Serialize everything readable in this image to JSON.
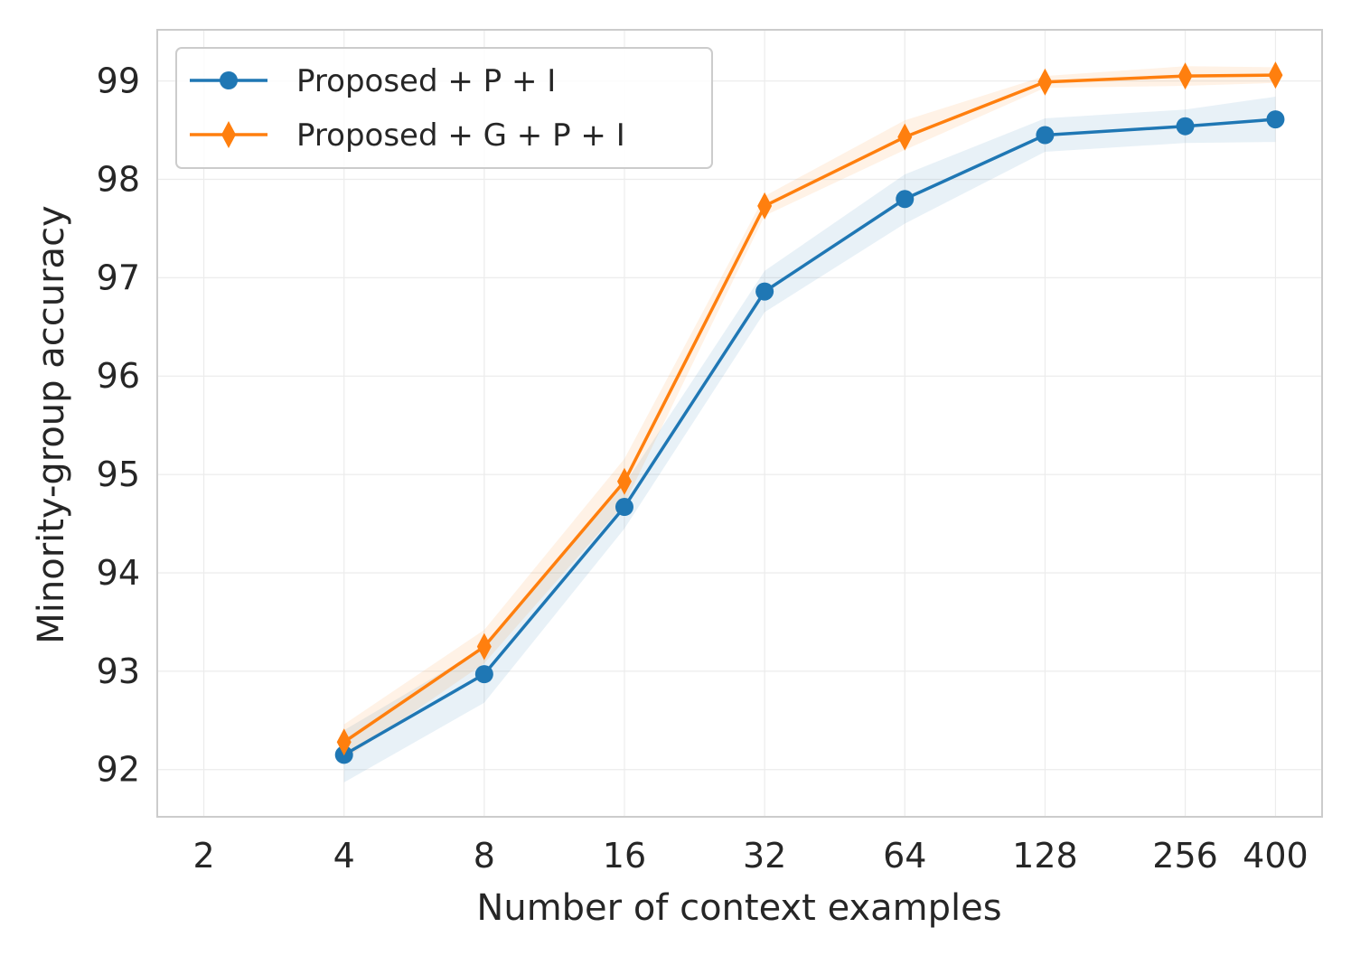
{
  "chart_data": {
    "type": "line",
    "xlabel": "Number of context examples",
    "ylabel": "Minority-group accuracy",
    "xscale": "log2",
    "xlim": [
      2,
      400
    ],
    "ylim": [
      91.52,
      99.52
    ],
    "xticks": [
      2,
      4,
      8,
      16,
      32,
      64,
      128,
      256,
      400
    ],
    "xtick_labels": [
      "2",
      "4",
      "8",
      "16",
      "32",
      "64",
      "128",
      "256",
      "400"
    ],
    "yticks": [
      92,
      93,
      94,
      95,
      96,
      97,
      98,
      99
    ],
    "ytick_labels": [
      "92",
      "93",
      "94",
      "95",
      "96",
      "97",
      "98",
      "99"
    ],
    "grid": true,
    "legend_position": "top-left",
    "x": [
      4,
      8,
      16,
      32,
      64,
      128,
      256,
      400
    ],
    "series": [
      {
        "name": "Proposed + P + I",
        "color": "#1f77b4",
        "marker": "circle",
        "values": [
          92.15,
          92.97,
          94.67,
          96.86,
          97.8,
          98.45,
          98.54,
          98.61
        ],
        "band_lower": [
          91.87,
          92.68,
          94.45,
          96.65,
          97.55,
          98.28,
          98.37,
          98.38
        ],
        "band_upper": [
          92.4,
          93.24,
          94.9,
          97.07,
          98.05,
          98.62,
          98.71,
          98.84
        ]
      },
      {
        "name": "Proposed + G + P + I",
        "color": "#ff7f0e",
        "marker": "diamond",
        "values": [
          92.28,
          93.25,
          94.93,
          97.73,
          98.43,
          98.99,
          99.05,
          99.06
        ],
        "band_lower": [
          92.1,
          93.08,
          94.7,
          97.63,
          98.3,
          98.93,
          98.95,
          98.98
        ],
        "band_upper": [
          92.46,
          93.42,
          95.16,
          97.83,
          98.6,
          99.05,
          99.15,
          99.14
        ]
      }
    ]
  }
}
